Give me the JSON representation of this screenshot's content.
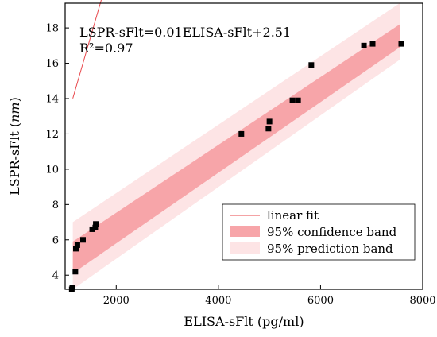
{
  "chart_data": {
    "type": "scatter",
    "xlabel": "ELISA-sFlt (pg/ml)",
    "ylabel": "LSPR-sFlt (nm)",
    "ylabel_prefix": "LSPR-sFlt (",
    "ylabel_unit": "nm",
    "ylabel_suffix": ")",
    "xlim": [
      1000,
      8000
    ],
    "ylim": [
      3.2,
      19.4
    ],
    "xticks": [
      2000,
      4000,
      6000,
      8000
    ],
    "yticks": [
      4,
      6,
      8,
      10,
      12,
      14,
      16,
      18
    ],
    "annotations": {
      "equation": "LSPR-sFlt=0.01ELISA-sFlt+2.51",
      "r2": "R²=0.97"
    },
    "fit": {
      "slope": 0.01,
      "intercept": 2.51,
      "x_range": [
        1150,
        7550
      ]
    },
    "confidence_band": {
      "lower": [
        [
          1150,
          4.1
        ],
        [
          7550,
          16.9
        ]
      ],
      "upper": [
        [
          1150,
          5.9
        ],
        [
          7550,
          18.2
        ]
      ]
    },
    "prediction_band": {
      "lower": [
        [
          1150,
          3.2
        ],
        [
          7550,
          16.2
        ]
      ],
      "upper": [
        [
          1150,
          7.0
        ],
        [
          7550,
          19.4
        ]
      ]
    },
    "series": [
      {
        "points": [
          [
            1130,
            3.2
          ],
          [
            1140,
            3.3
          ],
          [
            1200,
            4.2
          ],
          [
            1210,
            5.5
          ],
          [
            1240,
            5.7
          ],
          [
            1350,
            6.0
          ],
          [
            1530,
            6.6
          ],
          [
            1590,
            6.7
          ],
          [
            1600,
            6.9
          ],
          [
            4450,
            12.0
          ],
          [
            4980,
            12.3
          ],
          [
            5000,
            12.7
          ],
          [
            5450,
            13.9
          ],
          [
            5560,
            13.9
          ],
          [
            5820,
            15.9
          ],
          [
            6850,
            17.0
          ],
          [
            7020,
            17.1
          ],
          [
            7580,
            17.1
          ]
        ]
      }
    ],
    "legend": {
      "position": "bottom-right",
      "entries": [
        "linear fit",
        "95% confidence band",
        "95% prediction band"
      ]
    },
    "colors": {
      "fit_line": "#e8474b",
      "confidence_band": "#f7a5a9",
      "prediction_band": "#fde4e5",
      "points": "#000000"
    }
  }
}
